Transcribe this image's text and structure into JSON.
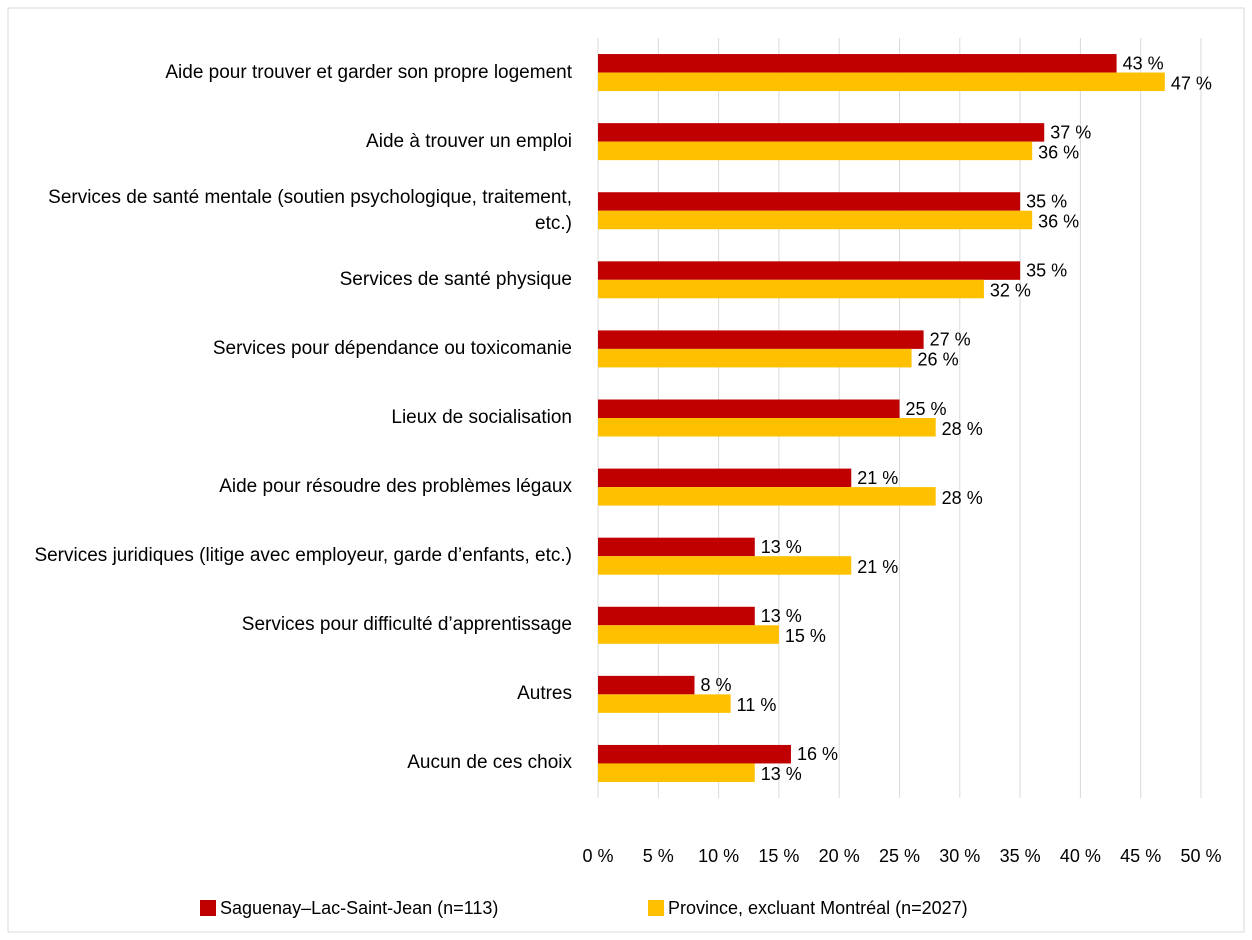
{
  "chart_data": {
    "type": "hbar",
    "categories": [
      "Aide pour trouver et garder son propre logement",
      "Aide à trouver un emploi",
      "Services de santé mentale (soutien psychologique, traitement, etc.)",
      "Services de santé physique",
      "Services pour dépendance ou toxicomanie",
      "Lieux de socialisation",
      "Aide pour résoudre des problèmes légaux",
      "Services juridiques (litige avec employeur, garde d’enfants, etc.)",
      "Services pour difficulté d’apprentissage",
      "Autres",
      "Aucun de ces choix"
    ],
    "series": [
      {
        "name": "Saguenay–Lac-Saint-Jean (n=113)",
        "color": "#c00000",
        "values": [
          43,
          37,
          35,
          35,
          27,
          25,
          21,
          13,
          13,
          8,
          16
        ],
        "value_labels": [
          "43 %",
          "37 %",
          "35 %",
          "35 %",
          "27 %",
          "25 %",
          "21 %",
          "13 %",
          "13 %",
          "8 %",
          "16 %"
        ]
      },
      {
        "name": "Province, excluant Montréal (n=2027)",
        "color": "#ffc000",
        "values": [
          47,
          36,
          36,
          32,
          26,
          28,
          28,
          21,
          15,
          11,
          13
        ],
        "value_labels": [
          "47 %",
          "36 %",
          "36 %",
          "32 %",
          "26 %",
          "28 %",
          "28 %",
          "21 %",
          "15 %",
          "11 %",
          "13 %"
        ]
      }
    ],
    "xlim": [
      0,
      50
    ],
    "xticks": [
      {
        "value": 0,
        "label": "0 %"
      },
      {
        "value": 5,
        "label": "5 %"
      },
      {
        "value": 10,
        "label": "10 %"
      },
      {
        "value": 15,
        "label": "15 %"
      },
      {
        "value": 20,
        "label": "20 %"
      },
      {
        "value": 25,
        "label": "25 %"
      },
      {
        "value": 30,
        "label": "30 %"
      },
      {
        "value": 35,
        "label": "35 %"
      },
      {
        "value": 40,
        "label": "40 %"
      },
      {
        "value": 45,
        "label": "45 %"
      },
      {
        "value": 50,
        "label": "50 %"
      }
    ],
    "grid": true,
    "legend": "bottom"
  }
}
